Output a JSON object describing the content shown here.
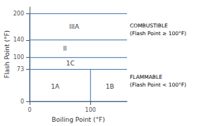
{
  "chart_data": {
    "type": "line",
    "xlabel": "Boiling Point (°F)",
    "ylabel": "Flash Point (°F)",
    "xlim": [
      0,
      160
    ],
    "ylim": [
      0,
      215
    ],
    "xticks": [
      0,
      100
    ],
    "yticks": [
      0,
      73,
      100,
      140,
      200
    ],
    "grid": false,
    "color": "#3a6fad",
    "lines": [
      {
        "x": [
          0,
          160
        ],
        "y": [
          200,
          200
        ]
      },
      {
        "x": [
          0,
          160
        ],
        "y": [
          140,
          140
        ]
      },
      {
        "x": [
          0,
          160
        ],
        "y": [
          100,
          100
        ]
      },
      {
        "x": [
          0,
          160
        ],
        "y": [
          73,
          73
        ]
      },
      {
        "x": [
          0,
          160
        ],
        "y": [
          0,
          0
        ]
      },
      {
        "x": [
          0,
          0
        ],
        "y": [
          0,
          200
        ]
      },
      {
        "x": [
          100,
          100
        ],
        "y": [
          0,
          73
        ]
      }
    ],
    "annotations": [
      {
        "text": "1A",
        "x": 35,
        "y": 34
      },
      {
        "text": "1B",
        "x": 125,
        "y": 34
      },
      {
        "text": "1C",
        "x": 60,
        "y": 86
      },
      {
        "text": "II",
        "x": 55,
        "y": 120
      },
      {
        "text": "IIIA",
        "x": 65,
        "y": 170
      }
    ],
    "side_annotations": [
      {
        "text": "COMBUSTIBLE\n(Flash Point ≥ 100°F)",
        "y": 163
      },
      {
        "text": "FLAMMABLE\n(Flash Point < 100°F)",
        "y": 46
      }
    ]
  }
}
